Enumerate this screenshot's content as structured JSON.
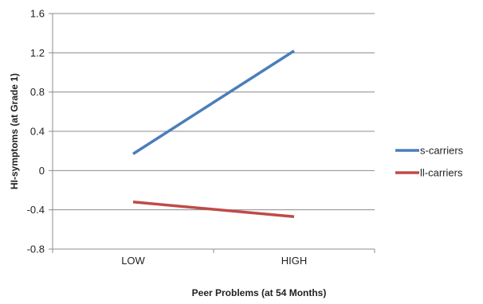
{
  "chart_data": {
    "type": "line",
    "categories": [
      "LOW",
      "HIGH"
    ],
    "series": [
      {
        "name": "s-carriers",
        "values": [
          0.17,
          1.22
        ],
        "color": "#4A7EBB"
      },
      {
        "name": "ll-carriers",
        "values": [
          -0.32,
          -0.47
        ],
        "color": "#BE4B48"
      }
    ],
    "title": "",
    "xlabel": "Peer Problems (at 54 Months)",
    "ylabel": "HI-symptoms (at Grade 1)",
    "ylim": [
      -0.8,
      1.6
    ],
    "yticks": [
      1.6,
      1.2,
      0.8,
      0.4,
      0,
      -0.4,
      -0.8
    ],
    "ytick_labels": [
      "1.6",
      "1.2",
      "0.8",
      "0.4",
      "0",
      "-0.4",
      "-0.8"
    ],
    "grid": true,
    "legend_position": "right",
    "gridline_color": "#8C8C8C"
  }
}
